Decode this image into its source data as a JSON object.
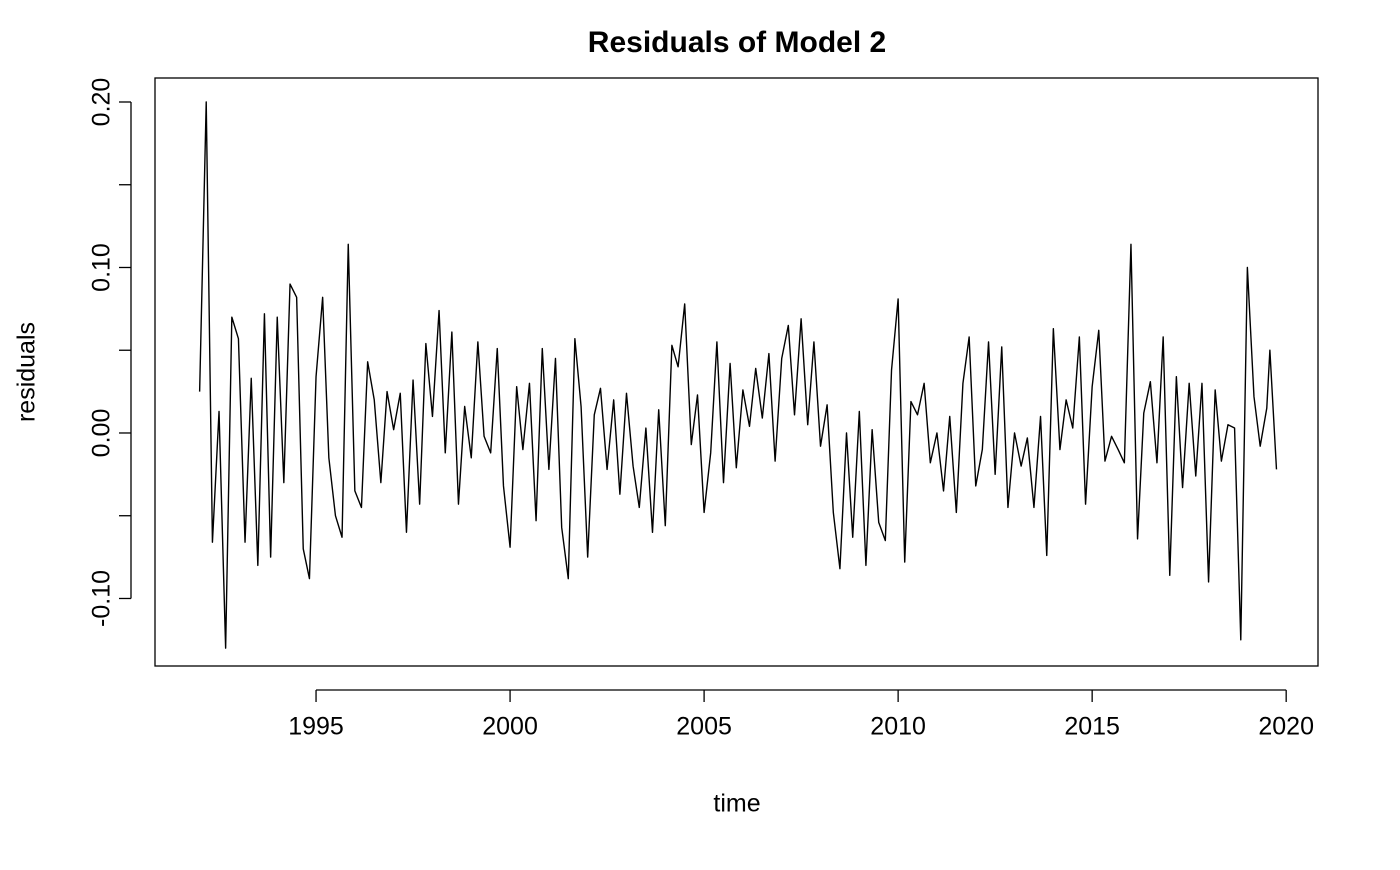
{
  "chart_data": {
    "type": "line",
    "title": "Residuals of Model 2",
    "xlabel": "time",
    "ylabel": "residuals",
    "color": "#000000",
    "xlim": [
      1990.85,
      2020.82
    ],
    "ylim": [
      -0.1408,
      0.2145
    ],
    "xticks": [
      1995,
      2000,
      2005,
      2010,
      2015,
      2020
    ],
    "yticks": [
      {
        "value": -0.1,
        "label": "-0.10"
      },
      {
        "value": 0,
        "label": "0.00"
      },
      {
        "value": 0.1,
        "label": "0.10"
      },
      {
        "value": 0.2,
        "label": "0.20"
      }
    ],
    "yminor": [
      -0.05,
      0.05,
      0.15
    ],
    "x": [
      1992,
      1992.17,
      1992.33,
      1992.5,
      1992.67,
      1992.83,
      1993,
      1993.17,
      1993.33,
      1993.5,
      1993.67,
      1993.83,
      1994,
      1994.17,
      1994.33,
      1994.5,
      1994.67,
      1994.83,
      1995,
      1995.17,
      1995.33,
      1995.5,
      1995.67,
      1995.83,
      1996,
      1996.17,
      1996.33,
      1996.5,
      1996.67,
      1996.83,
      1997,
      1997.17,
      1997.33,
      1997.5,
      1997.67,
      1997.83,
      1998,
      1998.17,
      1998.33,
      1998.5,
      1998.67,
      1998.83,
      1999,
      1999.17,
      1999.33,
      1999.5,
      1999.67,
      1999.83,
      2000,
      2000.17,
      2000.33,
      2000.5,
      2000.67,
      2000.83,
      2001,
      2001.17,
      2001.33,
      2001.5,
      2001.67,
      2001.83,
      2002,
      2002.17,
      2002.33,
      2002.5,
      2002.67,
      2002.83,
      2003,
      2003.17,
      2003.33,
      2003.5,
      2003.67,
      2003.83,
      2004,
      2004.17,
      2004.33,
      2004.5,
      2004.67,
      2004.83,
      2005,
      2005.17,
      2005.33,
      2005.5,
      2005.67,
      2005.83,
      2006,
      2006.17,
      2006.33,
      2006.5,
      2006.67,
      2006.83,
      2007,
      2007.17,
      2007.33,
      2007.5,
      2007.67,
      2007.83,
      2008,
      2008.17,
      2008.33,
      2008.5,
      2008.67,
      2008.83,
      2009,
      2009.17,
      2009.33,
      2009.5,
      2009.67,
      2009.83,
      2010,
      2010.17,
      2010.33,
      2010.5,
      2010.67,
      2010.83,
      2011,
      2011.17,
      2011.33,
      2011.5,
      2011.67,
      2011.83,
      2012,
      2012.17,
      2012.33,
      2012.5,
      2012.67,
      2012.83,
      2013,
      2013.17,
      2013.33,
      2013.5,
      2013.67,
      2013.83,
      2014,
      2014.17,
      2014.33,
      2014.5,
      2014.67,
      2014.83,
      2015,
      2015.17,
      2015.33,
      2015.5,
      2015.67,
      2015.83,
      2016,
      2016.17,
      2016.33,
      2016.5,
      2016.67,
      2016.83,
      2017,
      2017.17,
      2017.33,
      2017.5,
      2017.67,
      2017.83,
      2018,
      2018.17,
      2018.33,
      2018.5,
      2018.67,
      2018.83,
      2019,
      2019.17,
      2019.33,
      2019.5,
      2019.58,
      2019.75
    ],
    "values": [
      0.025,
      0.2,
      -0.066,
      0.013,
      -0.13,
      0.07,
      0.057,
      -0.066,
      0.033,
      -0.08,
      0.072,
      -0.075,
      0.07,
      -0.03,
      0.09,
      0.082,
      -0.07,
      -0.088,
      0.034,
      0.082,
      -0.015,
      -0.05,
      -0.063,
      0.114,
      -0.035,
      -0.045,
      0.043,
      0.02,
      -0.03,
      0.025,
      0.002,
      0.024,
      -0.06,
      0.032,
      -0.043,
      0.054,
      0.01,
      0.074,
      -0.012,
      0.061,
      -0.043,
      0.016,
      -0.015,
      0.055,
      -0.002,
      -0.012,
      0.051,
      -0.032,
      -0.069,
      0.028,
      -0.01,
      0.03,
      -0.053,
      0.051,
      -0.022,
      0.045,
      -0.057,
      -0.088,
      0.057,
      0.016,
      -0.075,
      0.011,
      0.027,
      -0.022,
      0.02,
      -0.037,
      0.024,
      -0.02,
      -0.045,
      0.003,
      -0.06,
      0.014,
      -0.056,
      0.053,
      0.04,
      0.078,
      -0.007,
      0.023,
      -0.048,
      -0.012,
      0.055,
      -0.03,
      0.042,
      -0.021,
      0.026,
      0.004,
      0.039,
      0.009,
      0.048,
      -0.017,
      0.045,
      0.065,
      0.011,
      0.069,
      0.005,
      0.055,
      -0.008,
      0.017,
      -0.048,
      -0.082,
      0,
      -0.063,
      0.013,
      -0.08,
      0.002,
      -0.054,
      -0.065,
      0.038,
      0.081,
      -0.078,
      0.019,
      0.011,
      0.03,
      -0.018,
      0,
      -0.035,
      0.01,
      -0.048,
      0.03,
      0.058,
      -0.032,
      -0.01,
      0.055,
      -0.025,
      0.052,
      -0.045,
      0,
      -0.02,
      -0.003,
      -0.045,
      0.01,
      -0.074,
      0.063,
      -0.01,
      0.02,
      0.003,
      0.058,
      -0.043,
      0.028,
      0.062,
      -0.017,
      -0.002,
      -0.01,
      -0.018,
      0.114,
      -0.064,
      0.012,
      0.031,
      -0.018,
      0.058,
      -0.086,
      0.034,
      -0.033,
      0.03,
      -0.026,
      0.03,
      -0.09,
      0.026,
      -0.017,
      0.005,
      0.003,
      -0.125,
      0.1,
      0.022,
      -0.008,
      0.015,
      0.05,
      -0.022
    ]
  }
}
